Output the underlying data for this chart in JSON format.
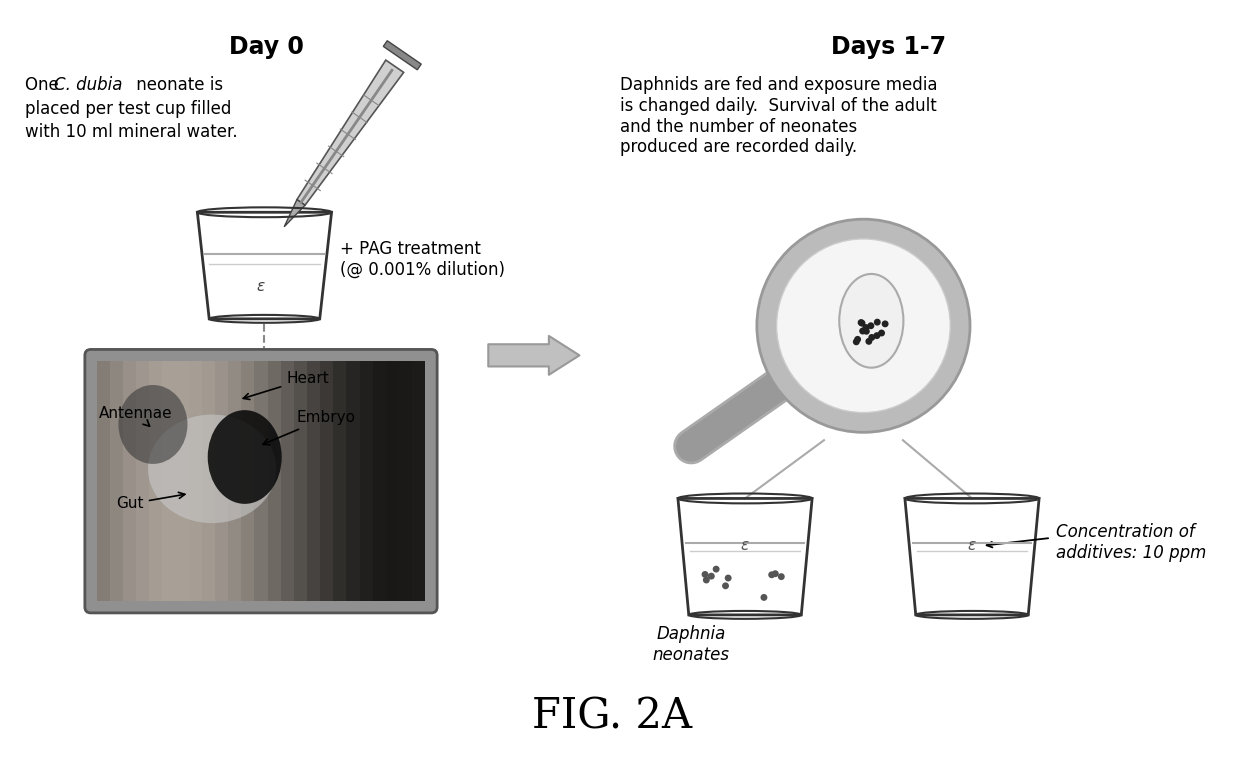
{
  "title": "FIG. 2A",
  "day0_title": "Day 0",
  "days17_title": "Days 1-7",
  "day0_text_line1_pre": "One ",
  "day0_text_line1_italic": "C. dubia",
  "day0_text_line1_post": " neonate is",
  "day0_text_line2": "placed per test cup filled",
  "day0_text_line3": "with 10 ml mineral water.",
  "pag_text": "+ PAG treatment\n(@ 0.001% dilution)",
  "days17_text": "Daphnids are fed and exposure media\nis changed daily.  Survival of the adult\nand the number of neonates\nproduced are recorded daily.",
  "daphnia_label1": "Daphnia\nneonates",
  "daphnia_label2": "Concentration of\nadditives: 10 ppm",
  "heart_label": "Heart",
  "embryo_label": "Embryo",
  "antennae_label": "Antennae",
  "gut_label": "Gut",
  "bg_color": "#ffffff",
  "text_color": "#000000",
  "gray_color": "#aaaaaa",
  "dark_gray": "#555555"
}
